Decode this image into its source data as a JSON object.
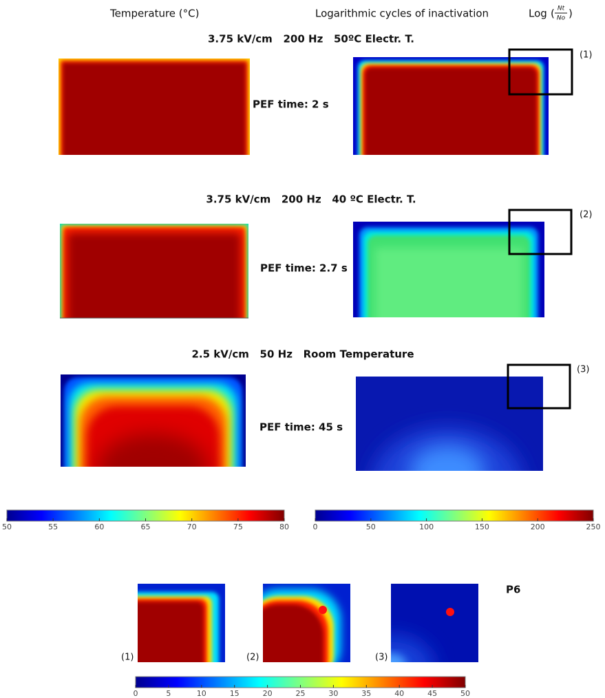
{
  "header": {
    "temperature_title": "Temperature (°C)",
    "inactivation_title": "Logarithmic cycles of inactivation",
    "log_label": "Log",
    "fraction_numerator": "Nt",
    "fraction_denominator": "No"
  },
  "rows": [
    {
      "title": "3.75 kV/cm   200 Hz   50ºC Electr. T.",
      "pef_time": "PEF time: 2 s",
      "zoom_label": "(1)"
    },
    {
      "title": "3.75 kV/cm   200 Hz   40 ºC Electr. T.",
      "pef_time": "PEF time: 2.7 s",
      "zoom_label": "(2)"
    },
    {
      "title": "2.5 kV/cm   50 Hz   Room Temperature",
      "pef_time": "PEF time: 45 s",
      "zoom_label": "(3)"
    }
  ],
  "colorbars": {
    "temperature_ticks": [
      50,
      55,
      60,
      65,
      70,
      75,
      80
    ],
    "inactivation_ticks": [
      0,
      50,
      100,
      150,
      200,
      250
    ]
  },
  "zoom": {
    "title": "P6",
    "panel_labels": [
      "(1)",
      "(2)",
      "(3)"
    ],
    "colorbar_ticks": [
      0,
      5,
      10,
      15,
      20,
      25,
      30,
      35,
      40,
      45,
      50
    ]
  }
}
